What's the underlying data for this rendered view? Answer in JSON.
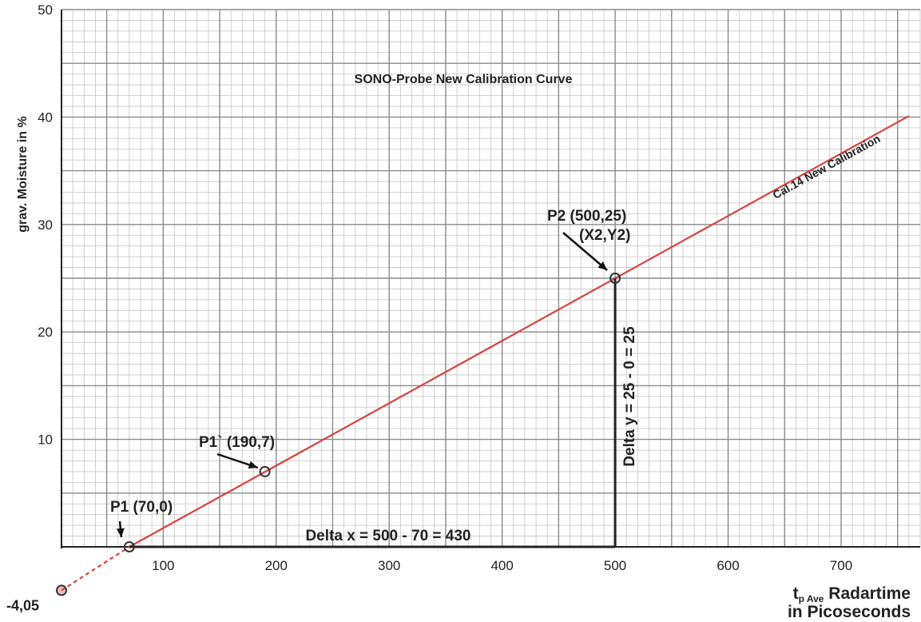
{
  "chart_data": {
    "type": "line",
    "title": "SONO-Probe     New Calibration Curve",
    "ylabel": "grav. Moisture in %",
    "xlabel_sub": "p Ave",
    "xlabel_t": "t",
    "xlabel_line1": "Radartime",
    "xlabel_line2": "in Picoseconds",
    "xlim": [
      10,
      770
    ],
    "ylim": [
      0,
      50
    ],
    "x_ticks": [
      100,
      200,
      300,
      400,
      500,
      600,
      700
    ],
    "x_tick_labels": [
      "100",
      "200",
      "300",
      "400",
      "500",
      "600",
      "700"
    ],
    "y_ticks": [
      10,
      20,
      30,
      40,
      50
    ],
    "y_tick_labels": [
      "10",
      "20",
      "30",
      "40",
      "50"
    ],
    "y_intercept_label": "-4,05",
    "series": [
      {
        "name": "Cal.14  New Calibration",
        "color": "#d9433f",
        "x": [
          70,
          760
        ],
        "y": [
          0,
          40.1
        ],
        "extrapolated": {
          "x": [
            10,
            70
          ],
          "y": [
            -4.05,
            0
          ]
        }
      }
    ],
    "points": [
      {
        "x": 10,
        "y": -4.05,
        "label": ""
      },
      {
        "x": 70,
        "y": 0,
        "label": "P1 (70,0)"
      },
      {
        "x": 190,
        "y": 7,
        "label": "P1` (190,7)"
      },
      {
        "x": 500,
        "y": 25,
        "label": "P2 (500,25)",
        "label2": "(X2,Y2)"
      }
    ],
    "annotations": {
      "delta_x": "Delta x = 500 - 70 = 430",
      "delta_y": "Delta y = 25 - 0 = 25"
    }
  }
}
